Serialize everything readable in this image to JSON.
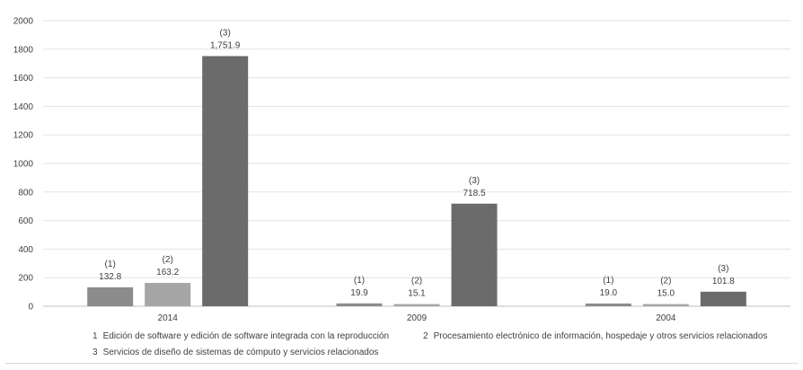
{
  "chart_data": {
    "type": "bar",
    "categories": [
      "2014",
      "2009",
      "2004"
    ],
    "series": [
      {
        "marker": "(1)",
        "values": [
          132.8,
          19.9,
          19.0
        ],
        "labels": [
          "132.8",
          "19.9",
          "19.0"
        ],
        "color": "#8c8c8c"
      },
      {
        "marker": "(2)",
        "values": [
          163.2,
          15.1,
          15.0
        ],
        "labels": [
          "163.2",
          "15.1",
          "15.0"
        ],
        "color": "#a6a6a6"
      },
      {
        "marker": "(3)",
        "values": [
          1751.9,
          718.5,
          101.8
        ],
        "labels": [
          "1,751.9",
          "718.5",
          "101.8"
        ],
        "color": "#6b6b6b"
      }
    ],
    "ylim": [
      0,
      2000
    ],
    "yticks": [
      "0",
      "200",
      "400",
      "600",
      "800",
      "1000",
      "1200",
      "1400",
      "1600",
      "1800",
      "2000"
    ],
    "grid": true,
    "legend_placement": "bottom",
    "legend": [
      {
        "num": "1",
        "text": "Edición de software y edición de software integrada con la reproducción"
      },
      {
        "num": "2",
        "text": "Procesamiento electrónico de información, hospedaje y otros servicios relacionados"
      },
      {
        "num": "3",
        "text": "Servicios de diseño de sistemas de cómputo y servicios relacionados"
      }
    ]
  }
}
